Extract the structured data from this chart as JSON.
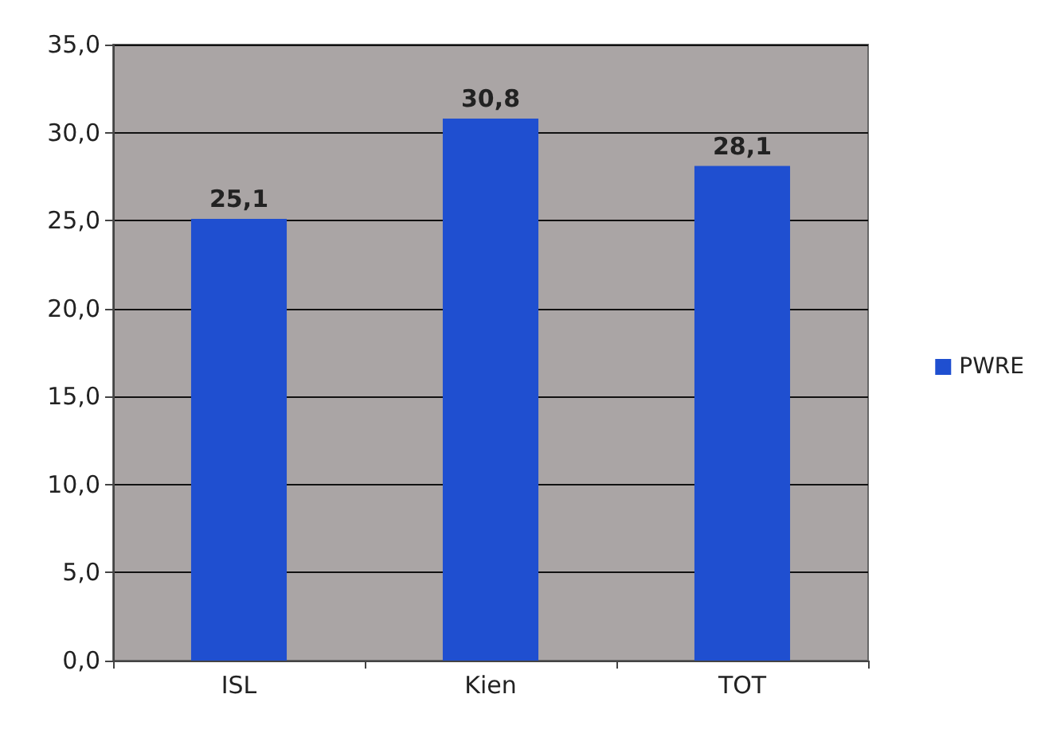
{
  "chart_data": {
    "type": "bar",
    "categories": [
      "ISL",
      "Kien",
      "TOT"
    ],
    "series": [
      {
        "name": "PWRE",
        "color": "#1f4fd0",
        "values": [
          25.1,
          30.8,
          28.1
        ],
        "value_labels": [
          "25,1",
          "30,8",
          "28,1"
        ]
      }
    ],
    "ylim": [
      0,
      35
    ],
    "yticks": [
      {
        "value": 0,
        "label": "0,0"
      },
      {
        "value": 5,
        "label": "5,0"
      },
      {
        "value": 10,
        "label": "10,0"
      },
      {
        "value": 15,
        "label": "15,0"
      },
      {
        "value": 20,
        "label": "20,0"
      },
      {
        "value": 25,
        "label": "25,0"
      },
      {
        "value": 30,
        "label": "30,0"
      },
      {
        "value": 35,
        "label": "35,0"
      }
    ],
    "grid": "y",
    "legend": "right"
  }
}
